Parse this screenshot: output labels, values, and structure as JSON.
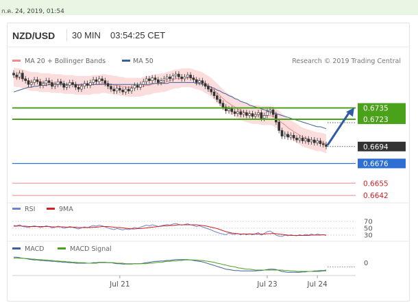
{
  "timestamp": "ก.ค. 24, 2019, 01:54",
  "header": {
    "symbol": "NZD/USD",
    "timeframe": "30 MIN",
    "clock": "03:54:25 CET"
  },
  "colors": {
    "ma20": "#f08a8a",
    "ma50": "#3b5f9a",
    "band_fill": "#f9d2d2",
    "green_level": "#4aa11a",
    "blue_level": "#2e6fd4",
    "red_level": "#e88a8a",
    "current": "#333333",
    "candle_up": "#ffffff",
    "candle_down": "#333333",
    "rsi": "#6a86d0",
    "rsi_ma": "#d42020",
    "macd": "#3b5f9a",
    "macd_signal": "#4aa11a",
    "arrow": "#2e5aa8"
  },
  "chart_data": [
    {
      "type": "candlestick",
      "name": "price",
      "legend": [
        {
          "label": "MA 20 + Bollinger Bands",
          "color": "#f08a8a"
        },
        {
          "label": "MA 50",
          "color": "#3b5f9a"
        }
      ],
      "credit": "Research © 2019 Trading Central",
      "x_ticks": [
        "Jul 21",
        "Jul 23",
        "Jul 24"
      ],
      "ylim": [
        0.6637,
        0.679
      ],
      "levels": [
        {
          "value": 0.6735,
          "label": "0.6735",
          "kind": "resistance",
          "style": "green-box"
        },
        {
          "value": 0.6723,
          "label": "0.6723",
          "kind": "resistance",
          "style": "green-box"
        },
        {
          "value": 0.6694,
          "label": "0.6694",
          "kind": "current",
          "style": "dark-box"
        },
        {
          "value": 0.6676,
          "label": "0.6676",
          "kind": "pivot",
          "style": "blue-box"
        },
        {
          "value": 0.6655,
          "label": "0.6655",
          "kind": "support",
          "style": "red-text"
        },
        {
          "value": 0.6642,
          "label": "0.6642",
          "kind": "support",
          "style": "red-text"
        }
      ],
      "close": [
        0.677,
        0.6768,
        0.6772,
        0.6766,
        0.6764,
        0.676,
        0.6762,
        0.6765,
        0.6763,
        0.6759,
        0.6761,
        0.6764,
        0.6762,
        0.6758,
        0.676,
        0.6763,
        0.6761,
        0.6757,
        0.6759,
        0.6762,
        0.676,
        0.6757,
        0.6755,
        0.6758,
        0.6761,
        0.6759,
        0.6762,
        0.6765,
        0.6763,
        0.6766,
        0.6764,
        0.6761,
        0.6758,
        0.6755,
        0.6753,
        0.6756,
        0.6754,
        0.6752,
        0.6755,
        0.6753,
        0.6756,
        0.6759,
        0.6757,
        0.676,
        0.6763,
        0.6766,
        0.6764,
        0.6767,
        0.6765,
        0.6762,
        0.6764,
        0.6766,
        0.6768,
        0.6766,
        0.6769,
        0.6771,
        0.6768,
        0.6766,
        0.6768,
        0.677,
        0.6767,
        0.6765,
        0.6762,
        0.6764,
        0.6761,
        0.6758,
        0.6755,
        0.6752,
        0.6748,
        0.6744,
        0.674,
        0.6736,
        0.6732,
        0.6734,
        0.6731,
        0.6729,
        0.6731,
        0.6728,
        0.673,
        0.6727,
        0.6729,
        0.6726,
        0.6728,
        0.673,
        0.6724,
        0.6727,
        0.6731,
        0.6733,
        0.6728,
        0.672,
        0.6711,
        0.6705,
        0.6707,
        0.6704,
        0.6706,
        0.6703,
        0.6701,
        0.6703,
        0.67,
        0.6702,
        0.6699,
        0.6701,
        0.6698,
        0.67,
        0.6697,
        0.6696,
        0.6694
      ],
      "ma20": [
        0.6768,
        0.6767,
        0.6767,
        0.6766,
        0.6765,
        0.6764,
        0.6763,
        0.6763,
        0.6763,
        0.6762,
        0.6762,
        0.6762,
        0.6762,
        0.6761,
        0.6761,
        0.6761,
        0.6761,
        0.676,
        0.676,
        0.676,
        0.676,
        0.6759,
        0.6759,
        0.6759,
        0.6759,
        0.6759,
        0.6759,
        0.676,
        0.676,
        0.676,
        0.6761,
        0.6761,
        0.676,
        0.676,
        0.6759,
        0.6759,
        0.6758,
        0.6758,
        0.6757,
        0.6757,
        0.6757,
        0.6757,
        0.6757,
        0.6757,
        0.6758,
        0.6759,
        0.6759,
        0.676,
        0.6761,
        0.6761,
        0.6762,
        0.6762,
        0.6763,
        0.6764,
        0.6765,
        0.6766,
        0.6766,
        0.6767,
        0.6767,
        0.6767,
        0.6767,
        0.6766,
        0.6765,
        0.6764,
        0.6763,
        0.6761,
        0.6759,
        0.6757,
        0.6754,
        0.6751,
        0.6748,
        0.6745,
        0.6742,
        0.674,
        0.6738,
        0.6736,
        0.6734,
        0.6732,
        0.6731,
        0.673,
        0.6729,
        0.6728,
        0.6728,
        0.6728,
        0.6727,
        0.6727,
        0.6727,
        0.6727,
        0.6726,
        0.6724,
        0.6722,
        0.6719,
        0.6717,
        0.6714,
        0.6712,
        0.671,
        0.6708,
        0.6706,
        0.6704,
        0.6703,
        0.6702,
        0.6701,
        0.67,
        0.6699,
        0.6699,
        0.6698,
        0.6697
      ],
      "bb_width": 0.001,
      "ma50": [
        0.6752,
        0.6753,
        0.6754,
        0.6755,
        0.6756,
        0.6757,
        0.6757,
        0.6758,
        0.6758,
        0.6759,
        0.6759,
        0.6759,
        0.676,
        0.676,
        0.676,
        0.676,
        0.676,
        0.676,
        0.676,
        0.676,
        0.676,
        0.676,
        0.676,
        0.676,
        0.676,
        0.676,
        0.676,
        0.676,
        0.676,
        0.676,
        0.676,
        0.676,
        0.676,
        0.676,
        0.676,
        0.676,
        0.676,
        0.676,
        0.676,
        0.676,
        0.676,
        0.676,
        0.676,
        0.676,
        0.676,
        0.676,
        0.676,
        0.6761,
        0.6761,
        0.6761,
        0.6761,
        0.6761,
        0.6761,
        0.6762,
        0.6762,
        0.6762,
        0.6762,
        0.6762,
        0.6762,
        0.6762,
        0.6762,
        0.6762,
        0.6761,
        0.6761,
        0.676,
        0.6759,
        0.6758,
        0.6757,
        0.6756,
        0.6754,
        0.6753,
        0.6751,
        0.675,
        0.6748,
        0.6747,
        0.6745,
        0.6744,
        0.6742,
        0.6741,
        0.674,
        0.6738,
        0.6737,
        0.6736,
        0.6735,
        0.6734,
        0.6733,
        0.6732,
        0.6731,
        0.673,
        0.6729,
        0.6728,
        0.6727,
        0.6726,
        0.6725,
        0.6724,
        0.6723,
        0.6722,
        0.6721,
        0.672,
        0.6719,
        0.6718,
        0.6717,
        0.6716,
        0.6715,
        0.6715,
        0.6714,
        0.6713
      ],
      "arrow": {
        "from_value": 0.6694,
        "to_value": 0.6731
      }
    },
    {
      "type": "line",
      "name": "rsi",
      "legend": [
        {
          "label": "RSI",
          "color": "#6a86d0"
        },
        {
          "label": "9MA",
          "color": "#d42020"
        }
      ],
      "y_ticks": [
        "70",
        "50",
        "30"
      ],
      "ylim": [
        20,
        80
      ],
      "rsi": [
        58,
        57,
        60,
        55,
        54,
        52,
        55,
        57,
        55,
        52,
        54,
        57,
        55,
        51,
        53,
        56,
        54,
        50,
        52,
        55,
        53,
        50,
        48,
        51,
        54,
        52,
        55,
        58,
        56,
        59,
        57,
        54,
        51,
        48,
        46,
        49,
        47,
        45,
        48,
        46,
        49,
        52,
        50,
        53,
        56,
        59,
        57,
        60,
        58,
        55,
        57,
        59,
        61,
        59,
        62,
        64,
        61,
        59,
        61,
        63,
        60,
        58,
        55,
        57,
        54,
        51,
        48,
        45,
        41,
        38,
        35,
        33,
        31,
        36,
        33,
        32,
        35,
        31,
        34,
        31,
        34,
        31,
        34,
        37,
        30,
        35,
        40,
        42,
        36,
        30,
        27,
        26,
        30,
        28,
        31,
        29,
        28,
        31,
        29,
        32,
        30,
        33,
        30,
        33,
        31,
        31,
        29
      ],
      "rsi_ma": [
        56,
        56,
        57,
        56,
        56,
        55,
        55,
        55,
        55,
        55,
        55,
        55,
        55,
        54,
        54,
        54,
        54,
        54,
        53,
        53,
        53,
        53,
        52,
        52,
        52,
        52,
        52,
        53,
        53,
        54,
        55,
        55,
        55,
        54,
        53,
        52,
        52,
        51,
        50,
        49,
        48,
        48,
        49,
        49,
        50,
        51,
        52,
        53,
        54,
        55,
        56,
        57,
        57,
        58,
        58,
        59,
        60,
        60,
        60,
        60,
        60,
        60,
        60,
        59,
        58,
        57,
        55,
        53,
        51,
        49,
        46,
        43,
        40,
        38,
        36,
        35,
        34,
        33,
        33,
        33,
        33,
        33,
        33,
        33,
        33,
        33,
        34,
        34,
        35,
        34,
        33,
        32,
        31,
        30,
        29,
        29,
        29,
        29,
        29,
        29,
        29,
        30,
        30,
        30,
        30,
        31,
        30
      ]
    },
    {
      "type": "line",
      "name": "macd",
      "legend": [
        {
          "label": "MACD",
          "color": "#3b5f9a"
        },
        {
          "label": "MACD Signal",
          "color": "#4aa11a"
        }
      ],
      "y_ticks": [
        "0"
      ],
      "ylim": [
        -0.0025,
        0.0017
      ],
      "macd": [
        0.0012,
        0.0012,
        0.0011,
        0.001,
        0.0009,
        0.0008,
        0.0007,
        0.0006,
        0.0006,
        0.0005,
        0.0005,
        0.0004,
        0.0004,
        0.0003,
        0.0003,
        0.0002,
        0.0002,
        0.0001,
        0.0001,
        0.0,
        0.0,
        -0.0001,
        -0.0001,
        -0.0001,
        -0.0001,
        -0.0001,
        -0.0001,
        0.0,
        0.0,
        0.0001,
        0.0001,
        0.0001,
        0.0,
        0.0,
        -0.0001,
        -0.0002,
        -0.0002,
        -0.0003,
        -0.0003,
        -0.0003,
        -0.0003,
        -0.0002,
        -0.0002,
        -0.0002,
        -0.0001,
        0.0,
        0.0001,
        0.0002,
        0.0003,
        0.0003,
        0.0004,
        0.0004,
        0.0005,
        0.0005,
        0.0006,
        0.0007,
        0.0007,
        0.0007,
        0.0007,
        0.0007,
        0.0006,
        0.0005,
        0.0004,
        0.0003,
        0.0002,
        0.0,
        -0.0002,
        -0.0004,
        -0.0006,
        -0.0008,
        -0.001,
        -0.0012,
        -0.0014,
        -0.0015,
        -0.0016,
        -0.0017,
        -0.0017,
        -0.0018,
        -0.0018,
        -0.0018,
        -0.0018,
        -0.0018,
        -0.0018,
        -0.0017,
        -0.0017,
        -0.0016,
        -0.0015,
        -0.0014,
        -0.0014,
        -0.0015,
        -0.0017,
        -0.0019,
        -0.002,
        -0.0021,
        -0.0021,
        -0.0021,
        -0.0021,
        -0.0021,
        -0.002,
        -0.002,
        -0.0019,
        -0.0019,
        -0.0018,
        -0.0018,
        -0.0017,
        -0.0017,
        -0.0016
      ],
      "signal": [
        0.001,
        0.001,
        0.001,
        0.001,
        0.0009,
        0.0009,
        0.0008,
        0.0008,
        0.0007,
        0.0007,
        0.0006,
        0.0006,
        0.0005,
        0.0005,
        0.0004,
        0.0004,
        0.0003,
        0.0003,
        0.0002,
        0.0002,
        0.0001,
        0.0001,
        0.0,
        0.0,
        0.0,
        -0.0001,
        -0.0001,
        -0.0001,
        -0.0001,
        0.0,
        0.0,
        0.0,
        0.0,
        0.0,
        0.0,
        -0.0001,
        -0.0001,
        -0.0001,
        -0.0002,
        -0.0002,
        -0.0002,
        -0.0002,
        -0.0002,
        -0.0002,
        -0.0002,
        -0.0002,
        -0.0001,
        -0.0001,
        0.0,
        0.0001,
        0.0001,
        0.0002,
        0.0003,
        0.0003,
        0.0004,
        0.0004,
        0.0005,
        0.0005,
        0.0006,
        0.0006,
        0.0006,
        0.0006,
        0.0006,
        0.0005,
        0.0005,
        0.0004,
        0.0003,
        0.0002,
        0.0001,
        -0.0001,
        -0.0002,
        -0.0004,
        -0.0005,
        -0.0007,
        -0.0008,
        -0.0009,
        -0.0011,
        -0.0012,
        -0.0013,
        -0.0014,
        -0.0014,
        -0.0015,
        -0.0016,
        -0.0016,
        -0.0016,
        -0.0016,
        -0.0016,
        -0.0016,
        -0.0016,
        -0.0016,
        -0.0016,
        -0.0016,
        -0.0017,
        -0.0017,
        -0.0018,
        -0.0018,
        -0.0019,
        -0.0019,
        -0.0019,
        -0.0019,
        -0.0019,
        -0.0019,
        -0.0019,
        -0.0019,
        -0.0019,
        -0.0018,
        -0.0018
      ]
    }
  ]
}
